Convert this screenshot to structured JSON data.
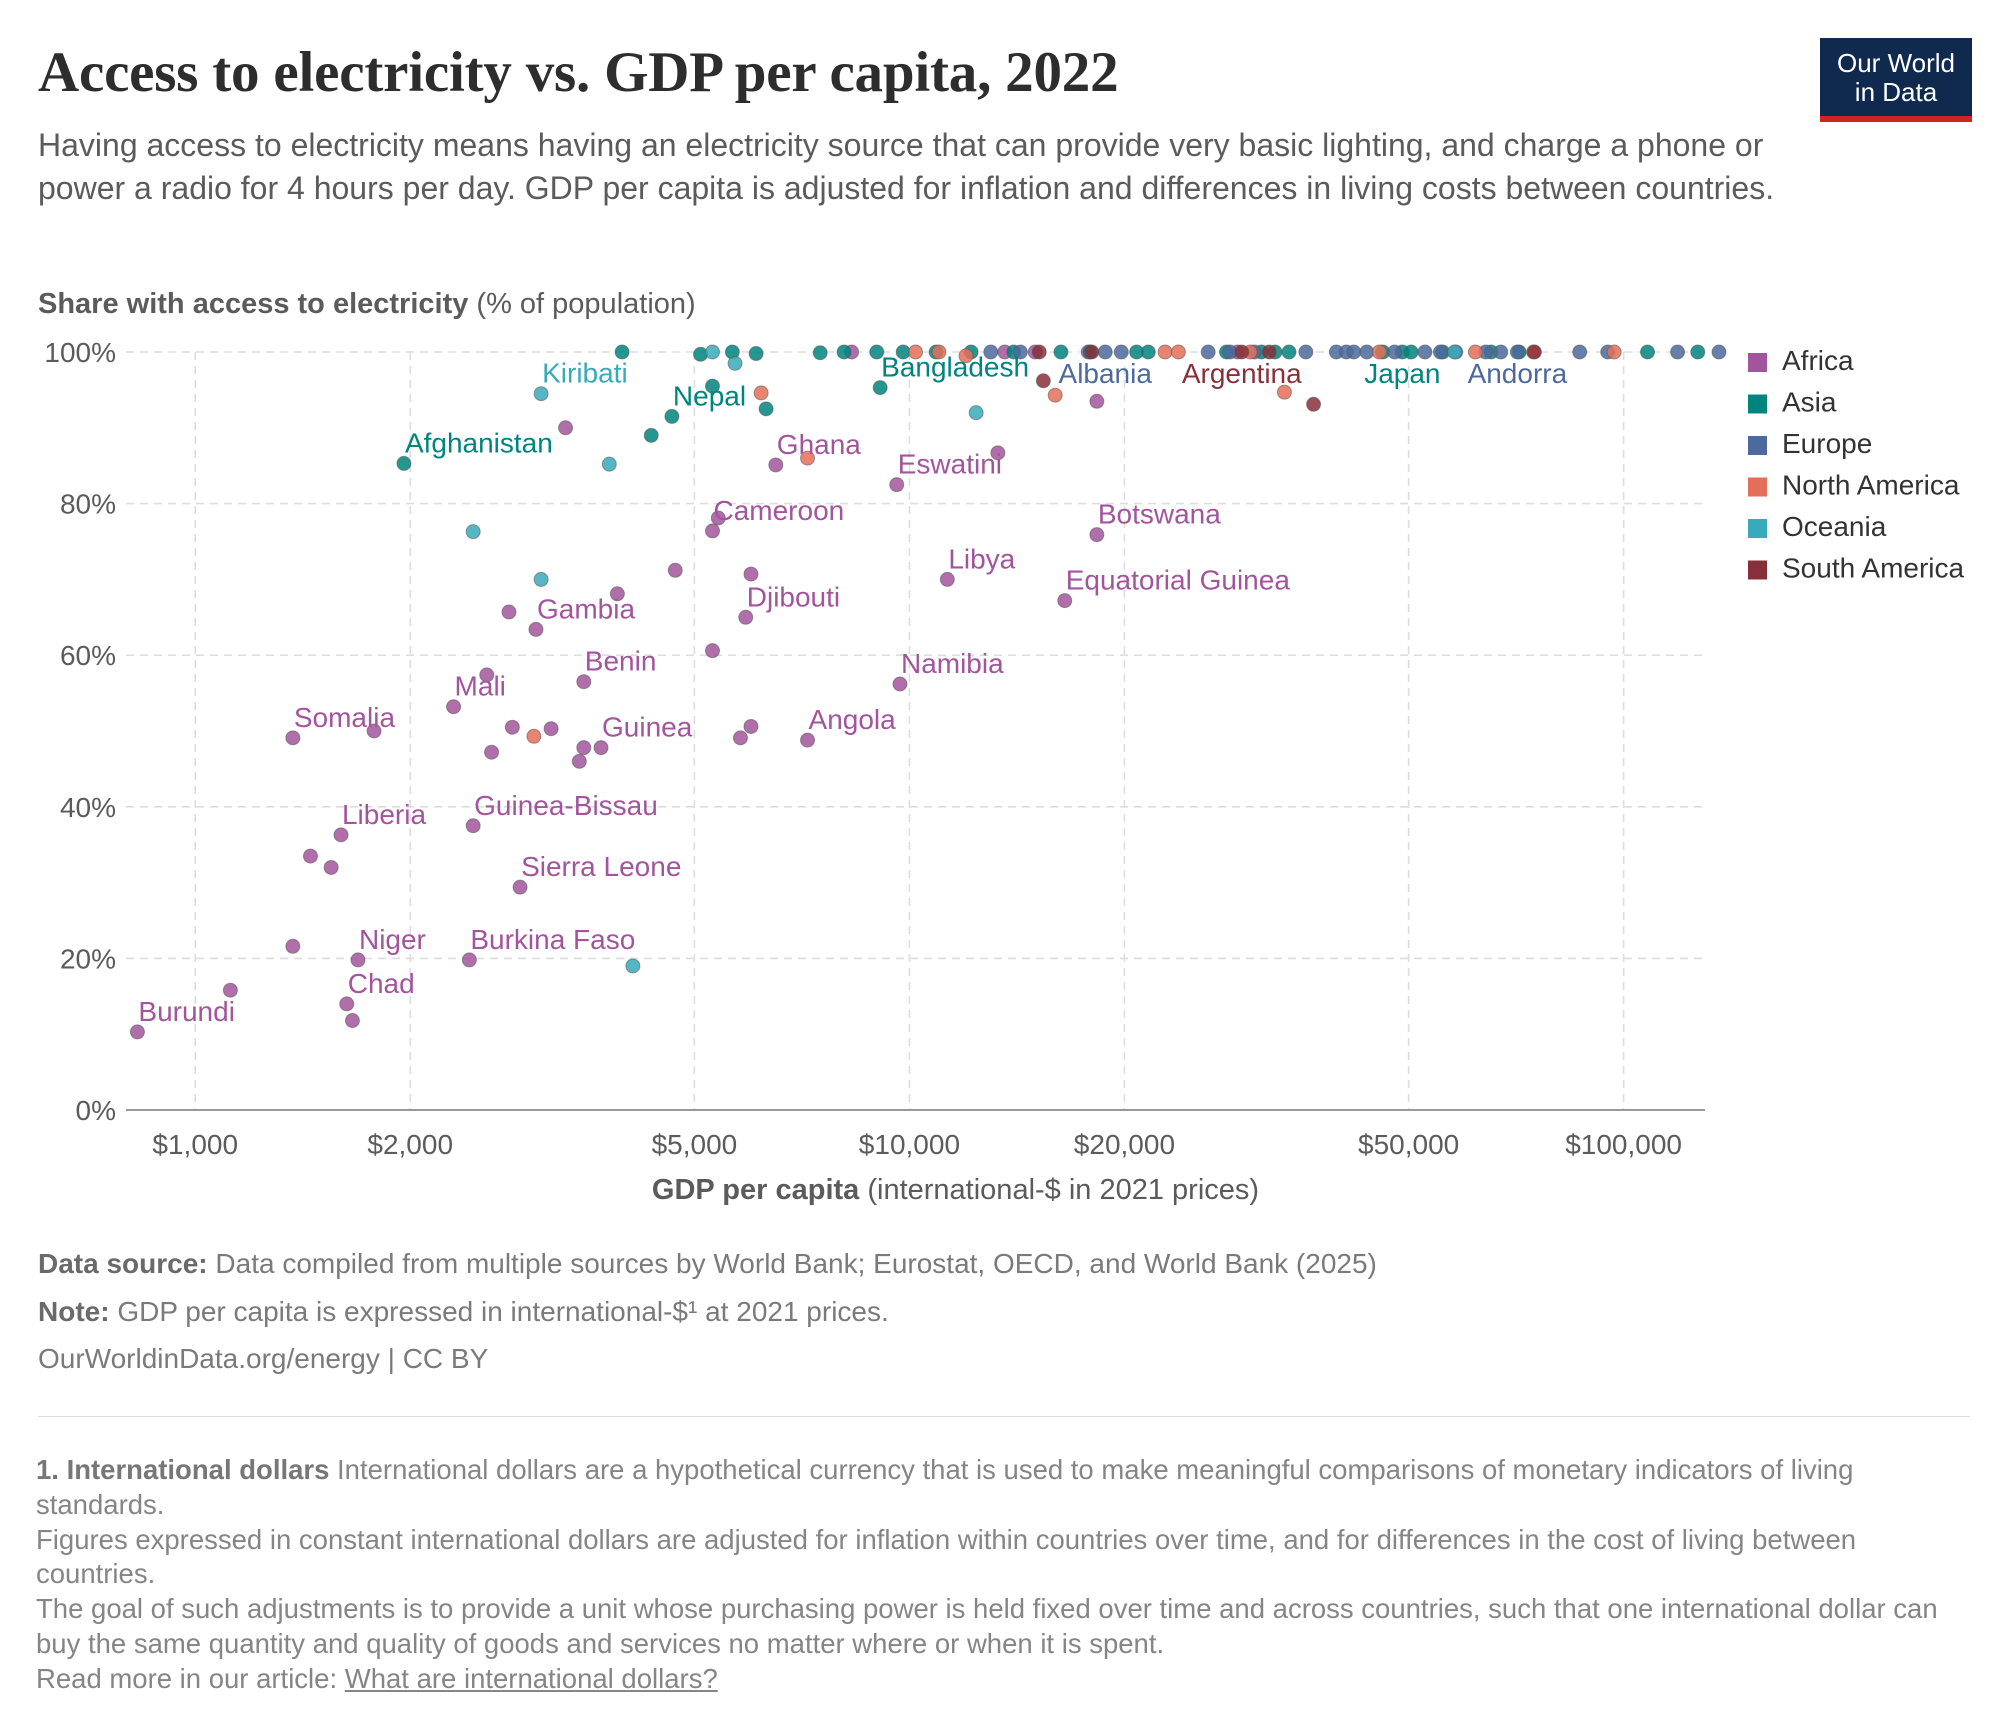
{
  "header": {
    "title": "Access to electricity vs. GDP per capita, 2022",
    "subtitle": "Having access to electricity means having an electricity source that can provide very basic lighting, and charge a phone or power a radio for 4 hours per day. GDP per capita is adjusted for inflation and differences in living costs between countries.",
    "logo_line1": "Our World",
    "logo_line2": "in Data"
  },
  "footer": {
    "source_label": "Data source:",
    "source_text": "Data compiled from multiple sources by World Bank; Eurostat, OECD, and World Bank (2025)",
    "note_label": "Note:",
    "note_text": "GDP per capita is expressed in international-$¹ at 2021 prices.",
    "credit": "OurWorldinData.org/energy | CC BY"
  },
  "footnote": {
    "label": "1. International dollars",
    "text1": "International dollars are a hypothetical currency that is used to make meaningful comparisons of monetary indicators of living standards.",
    "text2": "Figures expressed in constant international dollars are adjusted for inflation within countries over time, and for differences in the cost of living between countries.",
    "text3": "The goal of such adjustments is to provide a unit whose purchasing power is held fixed over time and across countries, such that one international dollar can buy the same quantity and quality of goods and services no matter where or when it is spent.",
    "read_more": "Read more in our article:",
    "link_text": "What are international dollars?"
  },
  "chart_data": {
    "type": "scatter",
    "y_title_bold": "Share with access to electricity",
    "y_title_rest": "(% of population)",
    "x_title_bold": "GDP per capita",
    "x_title_rest": "(international-$ in 2021 prices)",
    "x_scale": "log",
    "xlim": [
      800,
      130000
    ],
    "ylim": [
      0,
      100
    ],
    "x_ticks": [
      1000,
      2000,
      5000,
      10000,
      20000,
      50000,
      100000
    ],
    "x_tick_labels": [
      "$1,000",
      "$2,000",
      "$5,000",
      "$10,000",
      "$20,000",
      "$50,000",
      "$100,000"
    ],
    "y_ticks": [
      0,
      20,
      40,
      60,
      80,
      100
    ],
    "y_tick_labels": [
      "0%",
      "20%",
      "40%",
      "60%",
      "80%",
      "100%"
    ],
    "grid": true,
    "legend_position": "right",
    "colors": {
      "Africa": "#a2559c",
      "Asia": "#00847e",
      "Europe": "#4c6a9c",
      "North America": "#e56e5a",
      "Oceania": "#38aaba",
      "South America": "#883039"
    },
    "series": [
      {
        "name": "Africa",
        "points": [
          {
            "label": "Burundi",
            "x": 830,
            "y": 10.3
          },
          {
            "x": 1120,
            "y": 15.8
          },
          {
            "label": "Somalia",
            "x": 1370,
            "y": 49.1
          },
          {
            "x": 1370,
            "y": 21.6
          },
          {
            "x": 1450,
            "y": 33.5
          },
          {
            "x": 1550,
            "y": 32.0
          },
          {
            "label": "Liberia",
            "x": 1600,
            "y": 36.3
          },
          {
            "label": "Chad",
            "x": 1630,
            "y": 14.0
          },
          {
            "x": 1660,
            "y": 11.8
          },
          {
            "label": "Niger",
            "x": 1690,
            "y": 19.8
          },
          {
            "x": 1780,
            "y": 50.0
          },
          {
            "label": "Mali",
            "x": 2300,
            "y": 53.2
          },
          {
            "label": "Guinea-Bissau",
            "x": 2450,
            "y": 37.5
          },
          {
            "label": "Burkina Faso",
            "x": 2420,
            "y": 19.8
          },
          {
            "x": 2560,
            "y": 57.4
          },
          {
            "x": 2600,
            "y": 47.2
          },
          {
            "x": 2750,
            "y": 65.7
          },
          {
            "x": 2780,
            "y": 50.5
          },
          {
            "label": "Sierra Leone",
            "x": 2850,
            "y": 29.4
          },
          {
            "label": "Gambia",
            "x": 3000,
            "y": 63.4
          },
          {
            "x": 3150,
            "y": 50.3
          },
          {
            "x": 3300,
            "y": 90.0
          },
          {
            "label": "Benin",
            "x": 3500,
            "y": 56.5
          },
          {
            "x": 3500,
            "y": 47.8
          },
          {
            "x": 3450,
            "y": 46.0
          },
          {
            "label": "Guinea",
            "x": 3700,
            "y": 47.8
          },
          {
            "x": 3900,
            "y": 68.1
          },
          {
            "x": 4700,
            "y": 71.2
          },
          {
            "label": "Cameroon",
            "x": 5300,
            "y": 76.4
          },
          {
            "x": 5400,
            "y": 78.1
          },
          {
            "x": 5300,
            "y": 60.6
          },
          {
            "x": 5800,
            "y": 49.1
          },
          {
            "label": "Djibouti",
            "x": 5900,
            "y": 65.0
          },
          {
            "x": 6000,
            "y": 70.7
          },
          {
            "x": 6000,
            "y": 50.6
          },
          {
            "label": "Ghana",
            "x": 6500,
            "y": 85.1
          },
          {
            "label": "Angola",
            "x": 7200,
            "y": 48.8
          },
          {
            "label": "Eswatini",
            "x": 9600,
            "y": 82.5
          },
          {
            "label": "Namibia",
            "x": 9700,
            "y": 56.2
          },
          {
            "label": "Libya",
            "x": 11300,
            "y": 70.0
          },
          {
            "x": 13300,
            "y": 86.7
          },
          {
            "label": "Equatorial Guinea",
            "x": 16500,
            "y": 67.2
          },
          {
            "label": "Botswana",
            "x": 18300,
            "y": 75.9
          },
          {
            "x": 18300,
            "y": 93.5
          },
          {
            "x": 8300,
            "y": 100
          },
          {
            "x": 13600,
            "y": 100
          },
          {
            "x": 15000,
            "y": 100
          },
          {
            "x": 17800,
            "y": 100
          },
          {
            "x": 28800,
            "y": 100
          }
        ]
      },
      {
        "name": "Asia",
        "points": [
          {
            "label": "Afghanistan",
            "x": 1960,
            "y": 85.3
          },
          {
            "x": 3960,
            "y": 100
          },
          {
            "x": 4350,
            "y": 89.0
          },
          {
            "label": "Nepal",
            "x": 4650,
            "y": 91.5
          },
          {
            "x": 5100,
            "y": 99.7
          },
          {
            "x": 5300,
            "y": 95.5
          },
          {
            "x": 5650,
            "y": 100
          },
          {
            "x": 6100,
            "y": 99.8
          },
          {
            "x": 6300,
            "y": 92.5
          },
          {
            "x": 7500,
            "y": 99.9
          },
          {
            "x": 8100,
            "y": 100
          },
          {
            "label": "Bangladesh",
            "x": 9100,
            "y": 95.3
          },
          {
            "x": 9000,
            "y": 100
          },
          {
            "x": 9800,
            "y": 100
          },
          {
            "x": 10900,
            "y": 100
          },
          {
            "x": 12200,
            "y": 100
          },
          {
            "x": 14000,
            "y": 100
          },
          {
            "x": 16300,
            "y": 100
          },
          {
            "x": 17900,
            "y": 100
          },
          {
            "x": 20800,
            "y": 100
          },
          {
            "x": 21600,
            "y": 100
          },
          {
            "x": 27800,
            "y": 100
          },
          {
            "x": 31100,
            "y": 100
          },
          {
            "x": 32500,
            "y": 100
          },
          {
            "x": 34000,
            "y": 100
          },
          {
            "x": 46000,
            "y": 100
          },
          {
            "label": "Japan",
            "x": 49000,
            "y": 100
          },
          {
            "x": 50400,
            "y": 100
          },
          {
            "x": 55800,
            "y": 100
          },
          {
            "x": 65200,
            "y": 100
          },
          {
            "x": 71400,
            "y": 100
          },
          {
            "x": 108000,
            "y": 100
          },
          {
            "x": 127000,
            "y": 100
          }
        ]
      },
      {
        "name": "Europe",
        "points": [
          {
            "x": 13000,
            "y": 100
          },
          {
            "x": 14300,
            "y": 100
          },
          {
            "label": "Albania",
            "x": 18800,
            "y": 100
          },
          {
            "x": 19800,
            "y": 100
          },
          {
            "x": 26200,
            "y": 100
          },
          {
            "x": 28100,
            "y": 100
          },
          {
            "x": 30400,
            "y": 100
          },
          {
            "x": 35900,
            "y": 100
          },
          {
            "x": 39600,
            "y": 100
          },
          {
            "x": 40900,
            "y": 100
          },
          {
            "x": 41900,
            "y": 100
          },
          {
            "x": 43700,
            "y": 100
          },
          {
            "x": 47800,
            "y": 100
          },
          {
            "x": 52700,
            "y": 100
          },
          {
            "x": 55400,
            "y": 100
          },
          {
            "x": 58200,
            "y": 100
          },
          {
            "x": 64100,
            "y": 100
          },
          {
            "x": 67300,
            "y": 100
          },
          {
            "label": "Andorra",
            "x": 71000,
            "y": 100
          },
          {
            "x": 86800,
            "y": 100
          },
          {
            "x": 95000,
            "y": 100
          },
          {
            "x": 119000,
            "y": 100
          },
          {
            "x": 136000,
            "y": 100
          }
        ]
      },
      {
        "name": "North America",
        "points": [
          {
            "x": 2980,
            "y": 49.3
          },
          {
            "x": 6200,
            "y": 94.6
          },
          {
            "x": 7200,
            "y": 86.0
          },
          {
            "x": 10200,
            "y": 100
          },
          {
            "x": 11000,
            "y": 100
          },
          {
            "x": 12000,
            "y": 99.5
          },
          {
            "x": 16000,
            "y": 94.3
          },
          {
            "x": 22800,
            "y": 100
          },
          {
            "x": 23800,
            "y": 100
          },
          {
            "x": 33500,
            "y": 94.7
          },
          {
            "x": 30000,
            "y": 100
          },
          {
            "x": 45500,
            "y": 100
          },
          {
            "x": 62000,
            "y": 100
          },
          {
            "x": 74800,
            "y": 100
          },
          {
            "x": 97000,
            "y": 100
          }
        ]
      },
      {
        "name": "Oceania",
        "points": [
          {
            "label": "Kiribati",
            "x": 3050,
            "y": 94.5
          },
          {
            "x": 2450,
            "y": 76.3
          },
          {
            "x": 3050,
            "y": 70.0
          },
          {
            "x": 3800,
            "y": 85.2
          },
          {
            "x": 4100,
            "y": 19.0
          },
          {
            "x": 5300,
            "y": 100
          },
          {
            "x": 5700,
            "y": 98.5
          },
          {
            "x": 12400,
            "y": 92.0
          },
          {
            "x": 58000,
            "y": 100
          }
        ]
      },
      {
        "name": "South America",
        "points": [
          {
            "x": 15400,
            "y": 96.2
          },
          {
            "x": 15200,
            "y": 100
          },
          {
            "x": 18000,
            "y": 100
          },
          {
            "label": "Argentina",
            "x": 29200,
            "y": 100
          },
          {
            "x": 31900,
            "y": 100
          },
          {
            "x": 36800,
            "y": 93.1
          },
          {
            "x": 75000,
            "y": 100
          }
        ]
      }
    ],
    "labels": [
      {
        "text": "Kiribati",
        "series": "Oceania",
        "x": 3050,
        "y": 94.5
      },
      {
        "text": "Nepal",
        "series": "Asia",
        "x": 4650,
        "y": 91.5
      },
      {
        "text": "Bangladesh",
        "series": "Asia",
        "x": 9100,
        "y": 95.3
      },
      {
        "text": "Albania",
        "series": "Europe",
        "x": 18800,
        "y": 100
      },
      {
        "text": "Argentina",
        "series": "South America",
        "x": 29200,
        "y": 100
      },
      {
        "text": "Japan",
        "series": "Asia",
        "x": 49000,
        "y": 100
      },
      {
        "text": "Andorra",
        "series": "Europe",
        "x": 71000,
        "y": 100
      },
      {
        "text": "Afghanistan",
        "series": "Asia",
        "x": 1960,
        "y": 85.3
      },
      {
        "text": "Ghana",
        "series": "Africa",
        "x": 6500,
        "y": 85.1
      },
      {
        "text": "Eswatini",
        "series": "Africa",
        "x": 9600,
        "y": 82.5
      },
      {
        "text": "Botswana",
        "series": "Africa",
        "x": 18300,
        "y": 75.9
      },
      {
        "text": "Cameroon",
        "series": "Africa",
        "x": 5300,
        "y": 76.4
      },
      {
        "text": "Libya",
        "series": "Africa",
        "x": 11300,
        "y": 70.0
      },
      {
        "text": "Equatorial Guinea",
        "series": "Africa",
        "x": 16500,
        "y": 67.2
      },
      {
        "text": "Gambia",
        "series": "Africa",
        "x": 3000,
        "y": 63.4
      },
      {
        "text": "Djibouti",
        "series": "Africa",
        "x": 5900,
        "y": 65.0
      },
      {
        "text": "Benin",
        "series": "Africa",
        "x": 3500,
        "y": 56.5
      },
      {
        "text": "Namibia",
        "series": "Africa",
        "x": 9700,
        "y": 56.2
      },
      {
        "text": "Mali",
        "series": "Africa",
        "x": 2300,
        "y": 53.2
      },
      {
        "text": "Somalia",
        "series": "Africa",
        "x": 1370,
        "y": 49.1
      },
      {
        "text": "Guinea",
        "series": "Africa",
        "x": 3700,
        "y": 47.8
      },
      {
        "text": "Angola",
        "series": "Africa",
        "x": 7200,
        "y": 48.8
      },
      {
        "text": "Guinea-Bissau",
        "series": "Africa",
        "x": 2450,
        "y": 37.5
      },
      {
        "text": "Liberia",
        "series": "Africa",
        "x": 1600,
        "y": 36.3
      },
      {
        "text": "Sierra Leone",
        "series": "Africa",
        "x": 2850,
        "y": 29.4
      },
      {
        "text": "Niger",
        "series": "Africa",
        "x": 1690,
        "y": 19.8
      },
      {
        "text": "Burkina Faso",
        "series": "Africa",
        "x": 2420,
        "y": 19.8
      },
      {
        "text": "Chad",
        "series": "Africa",
        "x": 1630,
        "y": 14.0
      },
      {
        "text": "Burundi",
        "series": "Africa",
        "x": 830,
        "y": 10.3
      }
    ]
  }
}
